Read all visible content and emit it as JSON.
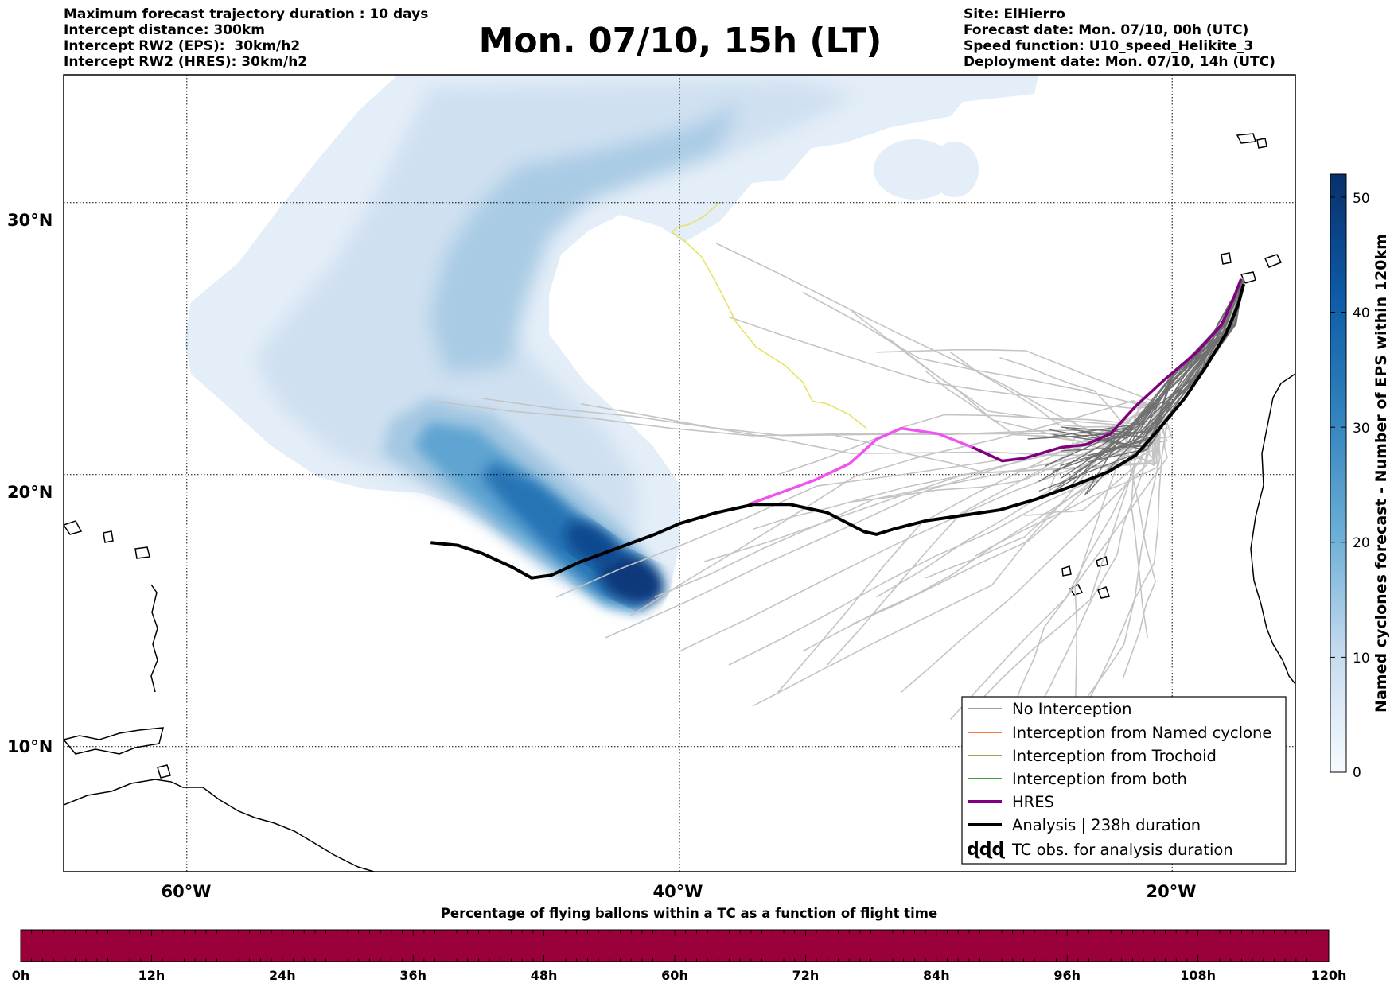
{
  "header": {
    "left_lines": [
      "Maximum forecast trajectory duration : 10 days",
      "Intercept distance: 300km",
      "Intercept RW2 (EPS):  30km/h2",
      "Intercept RW2 (HRES): 30km/h2"
    ],
    "right_lines": [
      "Site: ElHierro",
      "Forecast date: Mon. 07/10, 00h (UTC)",
      "Speed function: U10_speed_Helikite_3",
      "Deployment date: Mon. 07/10, 14h (UTC)"
    ],
    "title": "Mon. 07/10, 15h (LT)"
  },
  "map": {
    "lat_labels": [
      "30°N",
      "20°N",
      "10°N"
    ],
    "lon_labels": [
      "60°W",
      "40°W",
      "20°W"
    ],
    "grid_lats": [
      30,
      20,
      10
    ],
    "grid_lons": [
      -60,
      -40,
      -20
    ],
    "extent": {
      "lon_min": -65,
      "lon_max": -15,
      "lat_min": 5.4,
      "lat_max": 34.7
    },
    "density_colormap": "Blues"
  },
  "colorbar": {
    "label": "Named cyclones forecast - Number of EPS within 120km",
    "ticks": [
      "0",
      "10",
      "20",
      "30",
      "40",
      "50"
    ],
    "range": [
      0,
      52
    ]
  },
  "legend": {
    "items": [
      {
        "label": "No Interception",
        "color": "#808080"
      },
      {
        "label": "Interception from Named cyclone",
        "color": "#ff4500"
      },
      {
        "label": "Interception from Trochoid",
        "color": "#6b8e23"
      },
      {
        "label": "Interception from both",
        "color": "#008000"
      },
      {
        "label": "HRES",
        "color": "#800080"
      },
      {
        "label": "Analysis | 238h duration",
        "color": "#000000"
      },
      {
        "label": "TC obs. for analysis duration",
        "color": "#000000"
      }
    ]
  },
  "flight_bar": {
    "title": "Percentage of flying ballons within a TC as a function of flight time",
    "ticks": [
      "0h",
      "12h",
      "24h",
      "36h",
      "48h",
      "60h",
      "72h",
      "84h",
      "96h",
      "108h",
      "120h"
    ],
    "color": "#9a0039"
  },
  "tracks": {
    "analysis": [
      [
        -50.1,
        17.5
      ],
      [
        -49,
        17.4
      ],
      [
        -48,
        17.1
      ],
      [
        -46.8,
        16.6
      ],
      [
        -46,
        16.2
      ],
      [
        -45.2,
        16.3
      ],
      [
        -44,
        16.8
      ],
      [
        -42.5,
        17.3
      ],
      [
        -41,
        17.8
      ],
      [
        -40,
        18.2
      ],
      [
        -38.5,
        18.6
      ],
      [
        -37,
        18.9
      ],
      [
        -35.5,
        18.9
      ],
      [
        -34,
        18.6
      ],
      [
        -32.5,
        17.9
      ],
      [
        -32,
        17.8
      ],
      [
        -31.3,
        18
      ],
      [
        -30,
        18.3
      ],
      [
        -28.5,
        18.5
      ],
      [
        -27,
        18.7
      ],
      [
        -25.5,
        19.1
      ],
      [
        -24,
        19.6
      ],
      [
        -22.6,
        20.1
      ],
      [
        -21.5,
        20.7
      ],
      [
        -20.6,
        21.6
      ],
      [
        -19.5,
        22.8
      ],
      [
        -18.6,
        24
      ],
      [
        -17.8,
        25.2
      ],
      [
        -17.3,
        26.3
      ],
      [
        -17.1,
        27
      ]
    ],
    "hres": [
      [
        -37.2,
        18.9
      ],
      [
        -36,
        19.3
      ],
      [
        -34.5,
        19.8
      ],
      [
        -33.1,
        20.4
      ],
      [
        -32,
        21.3
      ],
      [
        -31,
        21.7
      ],
      [
        -29.5,
        21.5
      ],
      [
        -28.1,
        21
      ],
      [
        -26.9,
        20.5
      ],
      [
        -26,
        20.6
      ],
      [
        -24.5,
        21
      ],
      [
        -23.5,
        21.1
      ],
      [
        -22.5,
        21.5
      ],
      [
        -21.5,
        22.5
      ],
      [
        -20.3,
        23.5
      ],
      [
        -19,
        24.5
      ],
      [
        -18,
        25.5
      ],
      [
        -17.5,
        26.5
      ],
      [
        -17.2,
        27.2
      ]
    ],
    "yellow": [
      [
        -38.4,
        30
      ],
      [
        -39,
        29.5
      ],
      [
        -39.6,
        29.2
      ],
      [
        -40.1,
        29.1
      ],
      [
        -40.3,
        28.9
      ],
      [
        -39.8,
        28.6
      ],
      [
        -39.1,
        28
      ],
      [
        -38.6,
        27.2
      ],
      [
        -38.2,
        26.5
      ],
      [
        -37.7,
        25.6
      ],
      [
        -36.9,
        24.7
      ],
      [
        -35.7,
        24
      ],
      [
        -35,
        23.4
      ],
      [
        -34.6,
        22.7
      ],
      [
        -34,
        22.6
      ],
      [
        -33.1,
        22.2
      ],
      [
        -32.4,
        21.7
      ]
    ]
  }
}
